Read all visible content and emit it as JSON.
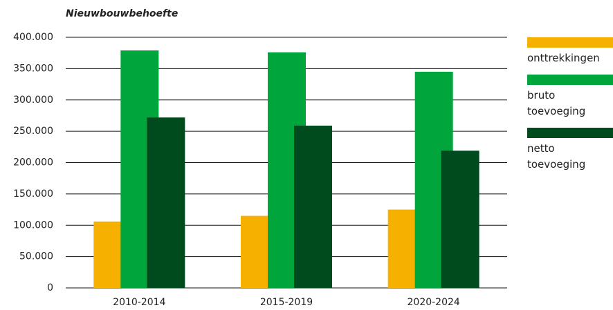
{
  "chart_data": {
    "type": "bar",
    "title": "Nieuwbouwbehoefte",
    "categories": [
      "2010-2014",
      "2015-2019",
      "2020-2024"
    ],
    "series": [
      {
        "name": "onttrekkingen",
        "color": "#f5b000",
        "values": [
          106000,
          115000,
          125000
        ]
      },
      {
        "name": "bruto toevoeging",
        "color": "#00a63c",
        "values": [
          379000,
          376000,
          345000
        ]
      },
      {
        "name": "netto toevoeging",
        "color": "#004b1e",
        "values": [
          272000,
          259000,
          219000
        ]
      }
    ],
    "ylim": [
      0,
      400000
    ],
    "yticks": [
      0,
      {
        "value": 50000,
        "label": "50.000"
      },
      {
        "value": 100000,
        "label": "100.000"
      },
      {
        "value": 150000,
        "label": "150.000"
      },
      {
        "value": 200000,
        "label": "200.000"
      },
      {
        "value": 250000,
        "label": "250.000"
      },
      {
        "value": 300000,
        "label": "300.000"
      },
      {
        "value": 350000,
        "label": "350.000"
      },
      {
        "value": 400000,
        "label": "400.000"
      }
    ],
    "grid": true,
    "legend": "right"
  }
}
